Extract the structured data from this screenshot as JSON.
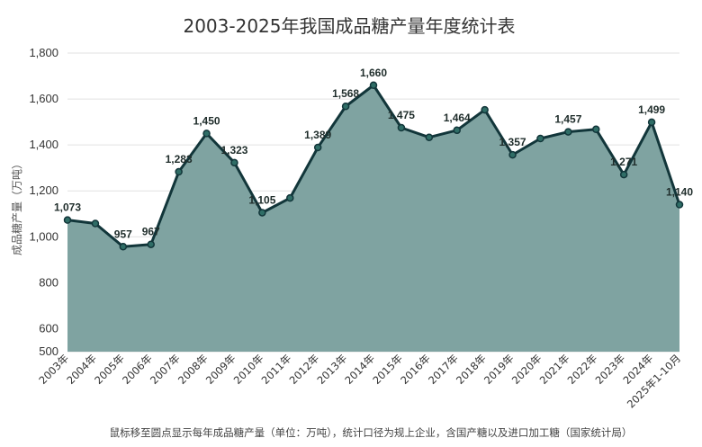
{
  "colors": {
    "area_fill": "#7fa3a1",
    "line": "#12363a",
    "marker_fill": "#2f6d66",
    "grid": "#e2e2e2"
  },
  "footnote": "鼠标移至圆点显示每年成品糖产量（单位：万吨），统计口径为规上企业，含国产糖以及进口加工糖（国家统计局）",
  "chart_data": {
    "type": "area",
    "title": "2003-2025年我国成品糖产量年度统计表",
    "xlabel": "",
    "ylabel": "成品糖产量（万吨）",
    "ylim": [
      500,
      1800
    ],
    "yticks": [
      500,
      600,
      800,
      1000,
      1200,
      1400,
      1600,
      1800
    ],
    "ytick_labels": [
      "500",
      "600",
      "800",
      "1,000",
      "1,200",
      "1,400",
      "1,600",
      "1,800"
    ],
    "grid": true,
    "legend": "none",
    "categories": [
      "2003年",
      "2004年",
      "2005年",
      "2006年",
      "2007年",
      "2008年",
      "2009年",
      "2010年",
      "2011年",
      "2012年",
      "2013年",
      "2014年",
      "2015年",
      "2016年",
      "2017年",
      "2018年",
      "2019年",
      "2020年",
      "2021年",
      "2022年",
      "2023年",
      "2024年",
      "2025年1-10月"
    ],
    "series": [
      {
        "values": [
          1073,
          1058,
          957,
          967,
          1283,
          1450,
          1323,
          1105,
          1169,
          1389,
          1568,
          1660,
          1475,
          1433,
          1464,
          1553,
          1357,
          1428,
          1457,
          1468,
          1271,
          1499,
          1140
        ]
      }
    ],
    "data_labels": [
      "1,073",
      "",
      "957",
      "967",
      "1,283",
      "1,450",
      "1,323",
      "1,105",
      "",
      "1,389",
      "1,568",
      "1,660",
      "1,475",
      "",
      "1,464",
      "",
      "1,357",
      "",
      "1,457",
      "",
      "1,271",
      "1,499",
      "1,140"
    ]
  }
}
